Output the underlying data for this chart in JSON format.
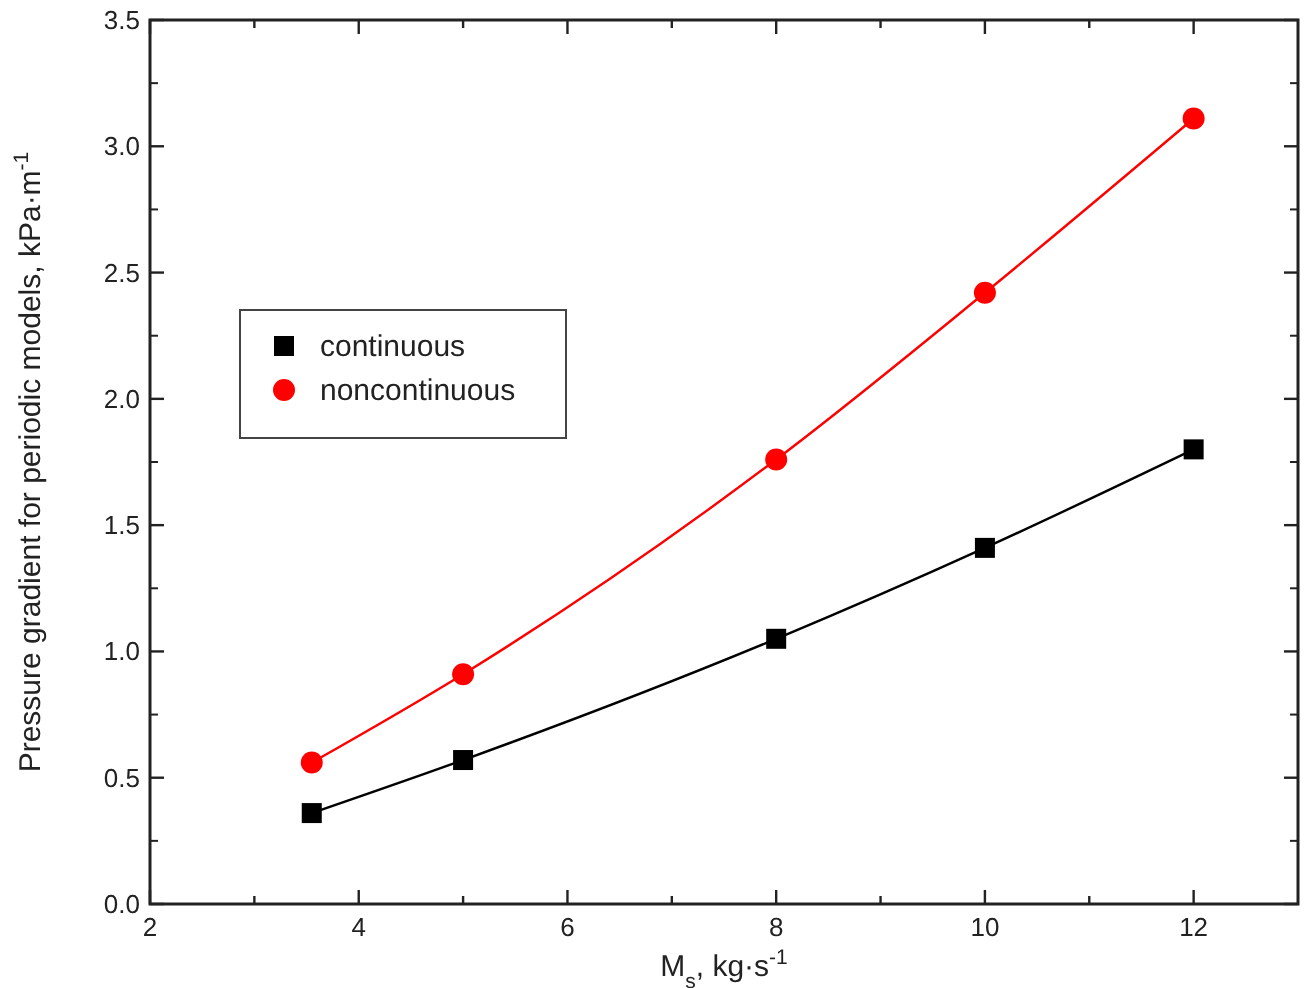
{
  "chart_data": {
    "type": "line",
    "xlabel": "M$_{s}$, kg·s$^{-1}$",
    "ylabel": "Pressure gradient for periodic models, kPa·m$^{-1}$",
    "x": [
      3.55,
      5,
      8,
      10,
      12
    ],
    "series": [
      {
        "name": "continuous",
        "color": "#000000",
        "marker": "square",
        "values": [
          0.36,
          0.57,
          1.05,
          1.41,
          1.8
        ]
      },
      {
        "name": "noncontinuous",
        "color": "#ff0000",
        "marker": "circle",
        "values": [
          0.56,
          0.91,
          1.76,
          2.42,
          3.11
        ]
      }
    ],
    "xlim": [
      2,
      13
    ],
    "xticks": [
      2,
      {
        "value": 3,
        "label": null
      },
      4,
      {
        "value": 5,
        "label": null
      },
      6,
      {
        "value": 7,
        "label": null
      },
      8,
      {
        "value": 9,
        "label": null
      },
      10,
      {
        "value": 11,
        "label": null
      },
      12
    ],
    "ylim": [
      0,
      3.5
    ],
    "yticks": [
      {
        "value": 0,
        "label": "0.0"
      },
      {
        "value": 0.5,
        "label": "0.5"
      },
      {
        "value": 1,
        "label": "1.0"
      },
      {
        "value": 1.5,
        "label": "1.5"
      },
      {
        "value": 2,
        "label": "2.0"
      },
      {
        "value": 2.5,
        "label": "2.5"
      },
      {
        "value": 3,
        "label": "3.0"
      },
      {
        "value": 3.5,
        "label": "3.5"
      }
    ],
    "legend": "left",
    "grid": false,
    "line_style": "solid"
  }
}
